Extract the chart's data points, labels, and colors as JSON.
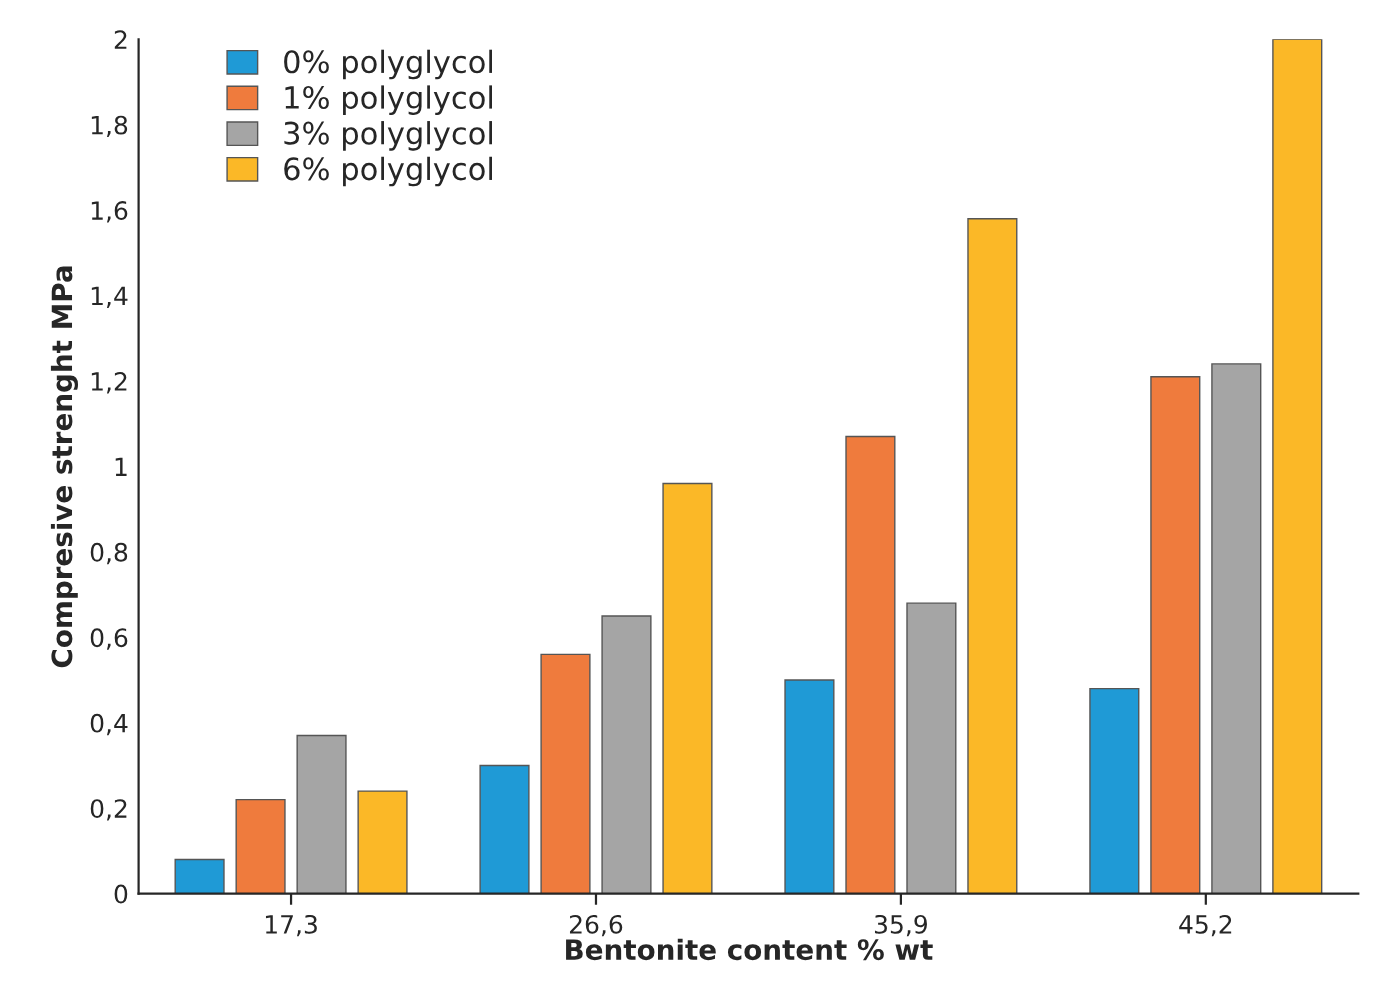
{
  "chart_data": {
    "type": "bar",
    "xlabel": "Bentonite content % wt",
    "ylabel": "Compresive strenght MPa",
    "categories": [
      "17,3",
      "26,6",
      "35,9",
      "45,2"
    ],
    "series": [
      {
        "name": "0% polyglycol",
        "color": "#1f9ad6",
        "values": [
          0.08,
          0.3,
          0.5,
          0.48
        ]
      },
      {
        "name": "1% polyglycol",
        "color": "#ef7b3d",
        "values": [
          0.22,
          0.56,
          1.07,
          1.21
        ]
      },
      {
        "name": "3% polyglycol",
        "color": "#a5a5a5",
        "values": [
          0.37,
          0.65,
          0.68,
          1.24
        ]
      },
      {
        "name": "6% polyglycol",
        "color": "#fbb827",
        "values": [
          0.24,
          0.96,
          1.58,
          2.0
        ]
      }
    ],
    "ylim": [
      0,
      2
    ],
    "yticks": [
      0,
      {
        "value": 0.2,
        "label": "0,2"
      },
      {
        "value": 0.4,
        "label": "0,4"
      },
      {
        "value": 0.6,
        "label": "0,6"
      },
      {
        "value": 0.8,
        "label": "0,8"
      },
      1,
      {
        "value": 1.2,
        "label": "1,2"
      },
      {
        "value": 1.4,
        "label": "1,4"
      },
      {
        "value": 1.6,
        "label": "1,6"
      },
      {
        "value": 1.8,
        "label": "1,8"
      },
      2
    ],
    "grid": false,
    "legend": "top left"
  }
}
